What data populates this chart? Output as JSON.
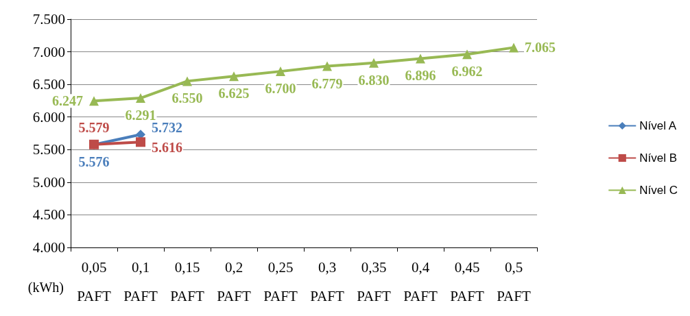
{
  "chart_data": {
    "type": "line",
    "ylabel": "(kWh)",
    "categories": [
      "0,05\nPAFT",
      "0,1\nPAFT",
      "0,15\nPAFT",
      "0,2\nPAFT",
      "0,25\nPAFT",
      "0,3\nPAFT",
      "0,35\nPAFT",
      "0,4\nPAFT",
      "0,45\nPAFT",
      "0,5\nPAFT"
    ],
    "series": [
      {
        "name": "Nível A",
        "color": "#4a7ebb",
        "marker": "diamond",
        "values": [
          5576,
          5732,
          null,
          null,
          null,
          null,
          null,
          null,
          null,
          null
        ],
        "value_labels": [
          "5.576",
          "5.732",
          null,
          null,
          null,
          null,
          null,
          null,
          null,
          null
        ]
      },
      {
        "name": "Nível B",
        "color": "#be4b48",
        "marker": "square",
        "values": [
          5579,
          5616,
          null,
          null,
          null,
          null,
          null,
          null,
          null,
          null
        ],
        "value_labels": [
          "5.579",
          "5.616",
          null,
          null,
          null,
          null,
          null,
          null,
          null,
          null
        ]
      },
      {
        "name": "Nível C",
        "color": "#98b954",
        "marker": "triangle",
        "values": [
          6247,
          6291,
          6550,
          6625,
          6700,
          6779,
          6830,
          6896,
          6962,
          7065
        ],
        "value_labels": [
          "6.247",
          "6.291",
          "6.550",
          "6.625",
          "6.700",
          "6.779",
          "6.830",
          "6.896",
          "6.962",
          "7.065"
        ]
      }
    ],
    "ylim": [
      4000,
      7500
    ],
    "yticks": [
      {
        "value": 4000,
        "label": "4.000"
      },
      {
        "value": 4500,
        "label": "4.500"
      },
      {
        "value": 5000,
        "label": "5.000"
      },
      {
        "value": 5500,
        "label": "5.500"
      },
      {
        "value": 6000,
        "label": "6.000"
      },
      {
        "value": 6500,
        "label": "6.500"
      },
      {
        "value": 7000,
        "label": "7.000"
      },
      {
        "value": 7500,
        "label": "7.500"
      }
    ],
    "grid": "y",
    "legend": "right",
    "line_style": "solid"
  }
}
